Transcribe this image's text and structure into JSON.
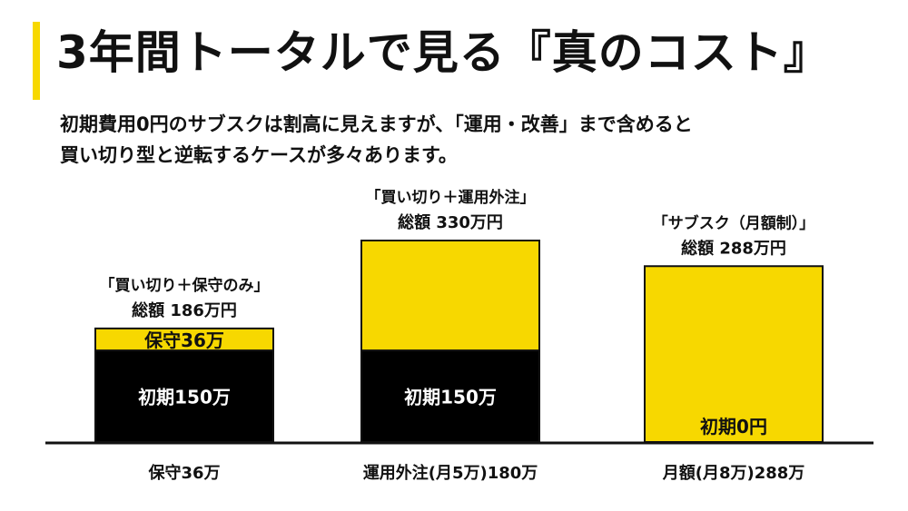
{
  "header": {
    "title": "3年間トータルで見る『真のコスト』",
    "subtitle_lines": [
      "初期費用0円のサブスクは割高に見えますが、「運用・改善」まで含めると",
      "買い切り型と逆転するケースが多々あります。"
    ]
  },
  "colors": {
    "accent": "#f7d800",
    "initial": "#000000",
    "running": "#f7d800",
    "text": "#111111"
  },
  "chart_data": {
    "type": "bar",
    "stacked": true,
    "unit": "万円",
    "categories": [
      {
        "name_line1": "「買い切り＋保守のみ」",
        "name_line2": "総額 186万円",
        "total": 186,
        "bottom_label": "保守36万"
      },
      {
        "name_line1": "「買い切り＋運用外注」",
        "name_line2": "総額 330万円",
        "total": 330,
        "bottom_label": "運用外注(月5万)180万"
      },
      {
        "name_line1": "「サブスク（月額制）」",
        "name_line2": "総額 288万円",
        "total": 288,
        "bottom_label": "月額(月8万)288万"
      }
    ],
    "series": [
      {
        "values": [
          150,
          150,
          0
        ],
        "segment_labels": [
          "初期150万",
          "初期150万",
          "初期0円"
        ],
        "color": "#000000",
        "label_color": "#ffffff"
      },
      {
        "values": [
          36,
          180,
          288
        ],
        "segment_labels": [
          "保守36万",
          "",
          ""
        ],
        "color": "#f7d800",
        "label_color": "#111111"
      }
    ],
    "ylim": [
      0,
      330
    ],
    "grid": false,
    "legend": "none"
  }
}
